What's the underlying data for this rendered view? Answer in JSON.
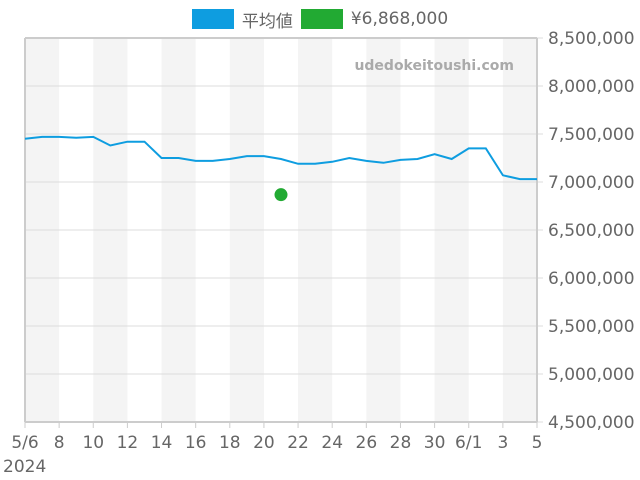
{
  "legend": {
    "items": [
      {
        "label": "平均値",
        "color": "#0e9de0"
      },
      {
        "label": "¥6,868,000",
        "color": "#22aa33"
      }
    ]
  },
  "watermark": "udedokeitoushi.com",
  "x_axis": {
    "ticks": [
      "5/6",
      "8",
      "10",
      "12",
      "14",
      "16",
      "18",
      "20",
      "22",
      "24",
      "26",
      "28",
      "30",
      "6/1",
      "3",
      "5"
    ],
    "year_label": "2024"
  },
  "y_axis": {
    "ticks": [
      "8,500,000",
      "8,000,000",
      "7,500,000",
      "7,000,000",
      "6,500,000",
      "6,000,000",
      "5,500,000",
      "5,000,000",
      "4,500,000"
    ]
  },
  "chart_data": {
    "type": "line",
    "title": "",
    "xlabel": "",
    "ylabel": "",
    "ylim": [
      4500000,
      8500000
    ],
    "x": [
      "2024-05-06",
      "2024-05-07",
      "2024-05-08",
      "2024-05-09",
      "2024-05-10",
      "2024-05-11",
      "2024-05-12",
      "2024-05-13",
      "2024-05-14",
      "2024-05-15",
      "2024-05-16",
      "2024-05-17",
      "2024-05-18",
      "2024-05-19",
      "2024-05-20",
      "2024-05-21",
      "2024-05-22",
      "2024-05-23",
      "2024-05-24",
      "2024-05-25",
      "2024-05-26",
      "2024-05-27",
      "2024-05-28",
      "2024-05-29",
      "2024-05-30",
      "2024-05-31",
      "2024-06-01",
      "2024-06-02",
      "2024-06-03",
      "2024-06-04",
      "2024-06-05"
    ],
    "series": [
      {
        "name": "平均値",
        "color": "#0e9de0",
        "values": [
          7450000,
          7470000,
          7470000,
          7460000,
          7470000,
          7380000,
          7420000,
          7420000,
          7250000,
          7250000,
          7220000,
          7220000,
          7240000,
          7270000,
          7270000,
          7240000,
          7190000,
          7190000,
          7210000,
          7250000,
          7220000,
          7200000,
          7230000,
          7240000,
          7290000,
          7240000,
          7350000,
          7350000,
          7070000,
          7030000,
          7030000
        ]
      },
      {
        "name": "¥6,868,000",
        "color": "#22aa33",
        "type": "scatter",
        "points": [
          {
            "x": "2024-05-21",
            "y": 6868000
          }
        ]
      }
    ],
    "grid": true,
    "legend_position": "top",
    "y_axis_position": "right"
  }
}
